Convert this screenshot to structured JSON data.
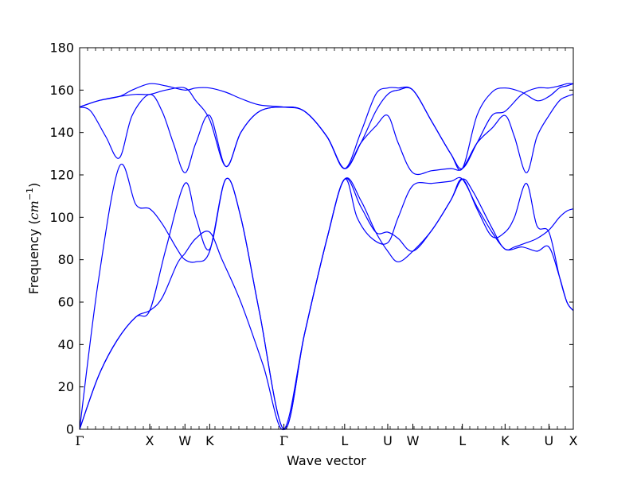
{
  "chart_data": {
    "type": "line",
    "title": "",
    "xlabel": "Wave vector",
    "ylabel_main": "Frequency (",
    "ylabel_unit": "cm",
    "ylabel_exp": "−1",
    "ylabel_close": ")",
    "ylim": [
      0,
      180
    ],
    "xlim": [
      0,
      13.17
    ],
    "grid": false,
    "line_color": "#0000ff",
    "yticks": [
      0,
      20,
      40,
      60,
      80,
      100,
      120,
      140,
      160,
      180
    ],
    "high_symmetry_points": [
      {
        "label": "Γ",
        "x": 0.0
      },
      {
        "label": "X",
        "x": 1.87
      },
      {
        "label": "W",
        "x": 2.81
      },
      {
        "label": "K",
        "x": 3.47
      },
      {
        "label": "Γ",
        "x": 5.45
      },
      {
        "label": "L",
        "x": 7.07
      },
      {
        "label": "U",
        "x": 8.22
      },
      {
        "label": "W",
        "x": 8.89
      },
      {
        "label": "L",
        "x": 10.21
      },
      {
        "label": "K",
        "x": 11.35
      },
      {
        "label": "U",
        "x": 12.52
      },
      {
        "label": "X",
        "x": 13.17
      }
    ],
    "series": [
      {
        "values": [
          [
            0.0,
            0
          ],
          [
            0.5,
            25
          ],
          [
            1.0,
            42
          ],
          [
            1.5,
            53
          ],
          [
            1.87,
            56
          ],
          [
            2.2,
            62
          ],
          [
            2.6,
            78
          ],
          [
            2.81,
            83
          ],
          [
            3.1,
            90
          ],
          [
            3.47,
            93
          ],
          [
            3.8,
            80
          ],
          [
            4.3,
            60
          ],
          [
            4.9,
            30
          ],
          [
            5.45,
            0
          ],
          [
            6.0,
            45
          ],
          [
            6.6,
            90
          ],
          [
            7.07,
            118
          ],
          [
            7.5,
            108
          ],
          [
            7.9,
            93
          ],
          [
            8.22,
            84
          ],
          [
            8.5,
            79
          ],
          [
            8.89,
            84
          ],
          [
            9.4,
            94
          ],
          [
            9.9,
            108
          ],
          [
            10.21,
            118
          ],
          [
            10.5,
            112
          ],
          [
            11.0,
            95
          ],
          [
            11.35,
            85
          ],
          [
            11.8,
            86
          ],
          [
            12.2,
            84
          ],
          [
            12.52,
            86
          ],
          [
            12.8,
            72
          ],
          [
            13.0,
            60
          ],
          [
            13.17,
            56
          ]
        ]
      },
      {
        "values": [
          [
            0.0,
            0
          ],
          [
            0.5,
            25
          ],
          [
            1.0,
            42
          ],
          [
            1.5,
            53
          ],
          [
            1.87,
            56
          ],
          [
            2.3,
            85
          ],
          [
            2.81,
            116
          ],
          [
            3.1,
            100
          ],
          [
            3.47,
            85
          ],
          [
            3.9,
            118
          ],
          [
            4.3,
            100
          ],
          [
            4.8,
            55
          ],
          [
            5.45,
            0
          ],
          [
            6.0,
            45
          ],
          [
            6.6,
            90
          ],
          [
            7.07,
            118
          ],
          [
            7.5,
            105
          ],
          [
            7.9,
            93
          ],
          [
            8.22,
            93
          ],
          [
            8.5,
            90
          ],
          [
            8.89,
            84
          ],
          [
            9.4,
            94
          ],
          [
            9.9,
            108
          ],
          [
            10.21,
            118
          ],
          [
            10.6,
            104
          ],
          [
            11.0,
            91
          ],
          [
            11.35,
            93
          ],
          [
            11.6,
            100
          ],
          [
            11.92,
            116
          ],
          [
            12.2,
            96
          ],
          [
            12.52,
            93
          ],
          [
            12.8,
            72
          ],
          [
            13.0,
            60
          ],
          [
            13.17,
            56
          ]
        ]
      },
      {
        "values": [
          [
            0.0,
            0
          ],
          [
            0.5,
            70
          ],
          [
            1.06,
            124
          ],
          [
            1.5,
            106
          ],
          [
            1.87,
            104
          ],
          [
            2.2,
            97
          ],
          [
            2.6,
            85
          ],
          [
            2.81,
            80
          ],
          [
            3.1,
            79
          ],
          [
            3.47,
            84
          ],
          [
            3.9,
            118
          ],
          [
            4.3,
            100
          ],
          [
            4.8,
            55
          ],
          [
            5.45,
            0
          ],
          [
            6.0,
            45
          ],
          [
            6.6,
            90
          ],
          [
            7.07,
            118
          ],
          [
            7.4,
            100
          ],
          [
            7.8,
            90
          ],
          [
            8.22,
            88
          ],
          [
            8.5,
            100
          ],
          [
            8.89,
            115
          ],
          [
            9.4,
            116
          ],
          [
            9.9,
            117
          ],
          [
            10.21,
            118
          ],
          [
            10.6,
            105
          ],
          [
            11.0,
            93
          ],
          [
            11.35,
            85
          ],
          [
            11.6,
            86
          ],
          [
            11.92,
            88
          ],
          [
            12.2,
            90
          ],
          [
            12.52,
            94
          ],
          [
            12.8,
            100
          ],
          [
            13.0,
            103
          ],
          [
            13.17,
            104
          ]
        ]
      },
      {
        "values": [
          [
            0.0,
            152
          ],
          [
            0.3,
            150
          ],
          [
            0.7,
            138
          ],
          [
            1.06,
            128
          ],
          [
            1.4,
            148
          ],
          [
            1.87,
            158
          ],
          [
            2.2,
            150
          ],
          [
            2.5,
            135
          ],
          [
            2.81,
            121
          ],
          [
            3.1,
            135
          ],
          [
            3.47,
            148
          ],
          [
            3.9,
            124
          ],
          [
            4.3,
            140
          ],
          [
            4.8,
            150
          ],
          [
            5.45,
            152
          ],
          [
            6.0,
            150
          ],
          [
            6.6,
            138
          ],
          [
            7.07,
            123
          ],
          [
            7.5,
            135
          ],
          [
            7.9,
            143
          ],
          [
            8.22,
            148
          ],
          [
            8.5,
            135
          ],
          [
            8.89,
            121
          ],
          [
            9.4,
            122
          ],
          [
            9.9,
            123
          ],
          [
            10.21,
            123
          ],
          [
            10.6,
            135
          ],
          [
            11.0,
            142
          ],
          [
            11.35,
            148
          ],
          [
            11.6,
            138
          ],
          [
            11.92,
            121
          ],
          [
            12.2,
            138
          ],
          [
            12.52,
            148
          ],
          [
            12.8,
            155
          ],
          [
            13.0,
            157
          ],
          [
            13.17,
            158
          ]
        ]
      },
      {
        "values": [
          [
            0.0,
            152
          ],
          [
            0.5,
            155
          ],
          [
            1.06,
            157
          ],
          [
            1.5,
            158
          ],
          [
            1.87,
            158
          ],
          [
            2.3,
            160
          ],
          [
            2.81,
            161
          ],
          [
            3.1,
            155
          ],
          [
            3.47,
            146
          ],
          [
            3.9,
            124
          ],
          [
            4.3,
            140
          ],
          [
            4.8,
            150
          ],
          [
            5.45,
            152
          ],
          [
            6.0,
            150
          ],
          [
            6.6,
            138
          ],
          [
            7.07,
            123
          ],
          [
            7.5,
            135
          ],
          [
            7.9,
            150
          ],
          [
            8.22,
            158
          ],
          [
            8.5,
            160
          ],
          [
            8.89,
            160
          ],
          [
            9.4,
            145
          ],
          [
            9.9,
            130
          ],
          [
            10.21,
            123
          ],
          [
            10.6,
            135
          ],
          [
            11.0,
            148
          ],
          [
            11.35,
            150
          ],
          [
            11.8,
            158
          ],
          [
            12.2,
            161
          ],
          [
            12.52,
            161
          ],
          [
            12.8,
            162
          ],
          [
            13.0,
            163
          ],
          [
            13.17,
            163
          ]
        ]
      },
      {
        "values": [
          [
            0.0,
            152
          ],
          [
            0.5,
            155
          ],
          [
            1.06,
            157
          ],
          [
            1.4,
            160
          ],
          [
            1.87,
            163
          ],
          [
            2.3,
            162
          ],
          [
            2.81,
            160
          ],
          [
            3.1,
            161
          ],
          [
            3.47,
            161
          ],
          [
            3.9,
            159
          ],
          [
            4.3,
            156
          ],
          [
            4.8,
            153
          ],
          [
            5.45,
            152
          ],
          [
            6.0,
            150
          ],
          [
            6.6,
            138
          ],
          [
            7.07,
            123
          ],
          [
            7.5,
            140
          ],
          [
            7.9,
            158
          ],
          [
            8.22,
            161
          ],
          [
            8.5,
            161
          ],
          [
            8.89,
            160
          ],
          [
            9.4,
            145
          ],
          [
            9.9,
            130
          ],
          [
            10.21,
            123
          ],
          [
            10.6,
            148
          ],
          [
            11.0,
            159
          ],
          [
            11.35,
            161
          ],
          [
            11.8,
            159
          ],
          [
            12.2,
            155
          ],
          [
            12.52,
            157
          ],
          [
            12.8,
            161
          ],
          [
            13.0,
            162
          ],
          [
            13.17,
            163
          ]
        ]
      }
    ]
  }
}
